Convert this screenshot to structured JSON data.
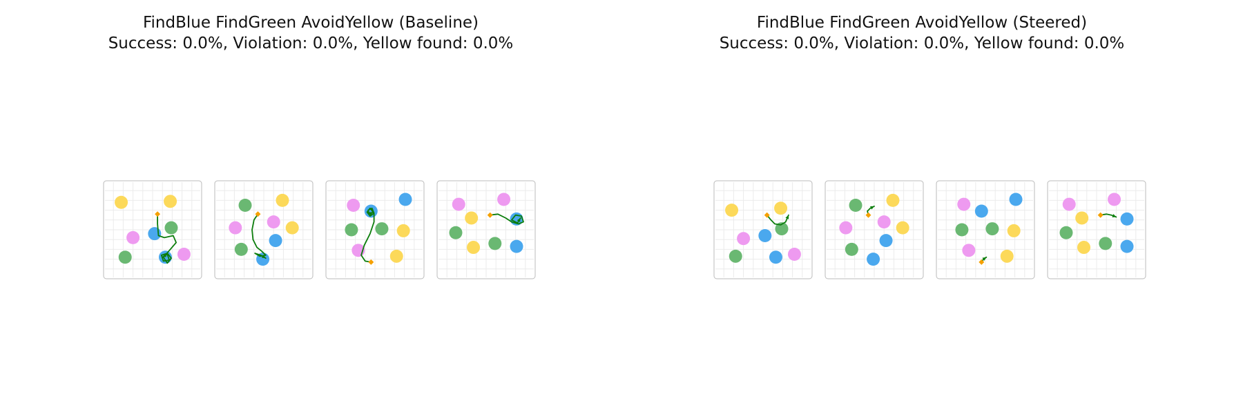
{
  "colors": {
    "blue": "#4aa8ee",
    "green": "#6ab872",
    "yellow": "#fcd95a",
    "pink": "#ee9af0",
    "path": "#0b7d0b",
    "start": "#f5a000",
    "frame": "#bbbbbb",
    "grid": "#ebebeb"
  },
  "panels": [
    {
      "title": "FindBlue FindGreen AvoidYellow (Baseline)",
      "subtitle": "Success: 0.0%, Violation: 0.0%, Yellow found: 0.0%"
    },
    {
      "title": "FindBlue FindGreen AvoidYellow (Steered)",
      "subtitle": "Success: 0.0%, Violation: 0.0%, Yellow found: 0.0%"
    }
  ],
  "chart_data": [
    {
      "type": "scatter",
      "title": "FindBlue FindGreen AvoidYellow (Baseline)",
      "subtitle": "Success: 0.0%, Violation: 0.0%, Yellow found: 0.0%",
      "grid": true,
      "episodes": [
        {
          "balls": [
            {
              "color": "yellow",
              "x": 1.8,
              "y": 7.8
            },
            {
              "color": "yellow",
              "x": 6.8,
              "y": 7.9
            },
            {
              "color": "green",
              "x": 6.9,
              "y": 5.2
            },
            {
              "color": "blue",
              "x": 5.2,
              "y": 4.6
            },
            {
              "color": "pink",
              "x": 3.0,
              "y": 4.2
            },
            {
              "color": "green",
              "x": 2.2,
              "y": 2.2
            },
            {
              "color": "blue",
              "x": 6.3,
              "y": 2.2
            },
            {
              "color": "pink",
              "x": 8.2,
              "y": 2.5
            }
          ],
          "start": {
            "x": 5.5,
            "y": 6.6
          },
          "path": [
            [
              5.5,
              6.6
            ],
            [
              5.5,
              5.6
            ],
            [
              5.6,
              4.4
            ],
            [
              6.2,
              4.2
            ],
            [
              7.1,
              4.4
            ],
            [
              7.4,
              3.7
            ],
            [
              6.8,
              3.0
            ],
            [
              6.1,
              2.2
            ],
            [
              6.5,
              1.6
            ],
            [
              6.9,
              2.1
            ],
            [
              6.5,
              2.6
            ],
            [
              5.9,
              2.4
            ],
            [
              6.1,
              1.8
            ],
            [
              6.7,
              1.9
            ],
            [
              6.5,
              2.5
            ],
            [
              6.0,
              2.2
            ]
          ]
        },
        {
          "balls": [
            {
              "color": "green",
              "x": 3.1,
              "y": 7.5
            },
            {
              "color": "yellow",
              "x": 6.9,
              "y": 8.0
            },
            {
              "color": "pink",
              "x": 6.0,
              "y": 5.8
            },
            {
              "color": "yellow",
              "x": 7.9,
              "y": 5.2
            },
            {
              "color": "pink",
              "x": 2.1,
              "y": 5.2
            },
            {
              "color": "blue",
              "x": 6.2,
              "y": 3.9
            },
            {
              "color": "green",
              "x": 2.7,
              "y": 3.0
            },
            {
              "color": "blue",
              "x": 4.9,
              "y": 2.0
            }
          ],
          "start": {
            "x": 4.4,
            "y": 6.6
          },
          "path": [
            [
              4.4,
              6.6
            ],
            [
              4.0,
              6.0
            ],
            [
              3.8,
              5.0
            ],
            [
              3.9,
              4.0
            ],
            [
              4.3,
              3.2
            ],
            [
              4.8,
              2.8
            ],
            [
              5.2,
              2.4
            ],
            [
              4.6,
              2.3
            ],
            [
              4.1,
              2.6
            ],
            [
              4.7,
              2.4
            ],
            [
              5.2,
              2.1
            ]
          ]
        },
        {
          "balls": [
            {
              "color": "pink",
              "x": 2.8,
              "y": 7.5
            },
            {
              "color": "blue",
              "x": 8.1,
              "y": 8.1
            },
            {
              "color": "blue",
              "x": 4.6,
              "y": 6.9
            },
            {
              "color": "green",
              "x": 2.6,
              "y": 5.0
            },
            {
              "color": "green",
              "x": 5.7,
              "y": 5.1
            },
            {
              "color": "yellow",
              "x": 7.9,
              "y": 4.9
            },
            {
              "color": "pink",
              "x": 3.3,
              "y": 2.9
            },
            {
              "color": "yellow",
              "x": 7.2,
              "y": 2.3
            }
          ],
          "start": {
            "x": 4.6,
            "y": 1.7
          },
          "path": [
            [
              4.6,
              1.7
            ],
            [
              4.0,
              1.8
            ],
            [
              3.6,
              2.4
            ],
            [
              3.9,
              3.4
            ],
            [
              4.5,
              4.6
            ],
            [
              4.9,
              5.8
            ],
            [
              4.9,
              6.7
            ],
            [
              4.5,
              7.2
            ],
            [
              4.2,
              6.8
            ],
            [
              4.5,
              6.4
            ],
            [
              4.9,
              6.7
            ],
            [
              4.7,
              7.2
            ],
            [
              4.3,
              7.0
            ],
            [
              4.4,
              6.6
            ],
            [
              4.8,
              6.8
            ]
          ]
        },
        {
          "balls": [
            {
              "color": "pink",
              "x": 2.2,
              "y": 7.6
            },
            {
              "color": "pink",
              "x": 6.8,
              "y": 8.1
            },
            {
              "color": "yellow",
              "x": 3.5,
              "y": 6.2
            },
            {
              "color": "blue",
              "x": 8.1,
              "y": 6.1
            },
            {
              "color": "green",
              "x": 1.9,
              "y": 4.7
            },
            {
              "color": "green",
              "x": 5.9,
              "y": 3.6
            },
            {
              "color": "yellow",
              "x": 3.7,
              "y": 3.2
            },
            {
              "color": "blue",
              "x": 8.1,
              "y": 3.3
            }
          ],
          "start": {
            "x": 5.4,
            "y": 6.5
          },
          "path": [
            [
              5.4,
              6.5
            ],
            [
              6.2,
              6.6
            ],
            [
              7.0,
              6.2
            ],
            [
              7.6,
              5.8
            ],
            [
              8.3,
              5.6
            ],
            [
              8.8,
              5.8
            ],
            [
              8.6,
              6.4
            ],
            [
              8.0,
              6.5
            ],
            [
              7.6,
              6.0
            ],
            [
              8.2,
              5.7
            ],
            [
              8.5,
              6.2
            ]
          ]
        }
      ]
    },
    {
      "type": "scatter",
      "title": "FindBlue FindGreen AvoidYellow (Steered)",
      "subtitle": "Success: 0.0%, Violation: 0.0%, Yellow found: 0.0%",
      "grid": true,
      "episodes": [
        {
          "balls": [
            {
              "color": "yellow",
              "x": 1.8,
              "y": 7.0
            },
            {
              "color": "yellow",
              "x": 6.8,
              "y": 7.2
            },
            {
              "color": "green",
              "x": 6.9,
              "y": 5.1
            },
            {
              "color": "blue",
              "x": 5.2,
              "y": 4.4
            },
            {
              "color": "pink",
              "x": 3.0,
              "y": 4.1
            },
            {
              "color": "green",
              "x": 2.2,
              "y": 2.3
            },
            {
              "color": "blue",
              "x": 6.3,
              "y": 2.2
            },
            {
              "color": "pink",
              "x": 8.2,
              "y": 2.5
            }
          ],
          "start": {
            "x": 5.4,
            "y": 6.5
          },
          "path": [
            [
              5.4,
              6.5
            ],
            [
              5.8,
              6.0
            ],
            [
              6.2,
              5.6
            ],
            [
              6.8,
              5.5
            ],
            [
              7.3,
              5.8
            ],
            [
              7.6,
              6.5
            ]
          ]
        },
        {
          "balls": [
            {
              "color": "green",
              "x": 3.1,
              "y": 7.5
            },
            {
              "color": "yellow",
              "x": 6.9,
              "y": 8.0
            },
            {
              "color": "pink",
              "x": 6.0,
              "y": 5.8
            },
            {
              "color": "yellow",
              "x": 7.9,
              "y": 5.2
            },
            {
              "color": "pink",
              "x": 2.1,
              "y": 5.2
            },
            {
              "color": "blue",
              "x": 6.2,
              "y": 3.9
            },
            {
              "color": "green",
              "x": 2.7,
              "y": 3.0
            },
            {
              "color": "blue",
              "x": 4.9,
              "y": 2.0
            }
          ],
          "start": {
            "x": 4.4,
            "y": 6.5
          },
          "path": [
            [
              4.4,
              6.5
            ],
            [
              4.3,
              6.9
            ],
            [
              4.6,
              7.2
            ],
            [
              5.0,
              7.4
            ]
          ]
        },
        {
          "balls": [
            {
              "color": "pink",
              "x": 2.8,
              "y": 7.6
            },
            {
              "color": "blue",
              "x": 8.1,
              "y": 8.1
            },
            {
              "color": "blue",
              "x": 4.6,
              "y": 6.9
            },
            {
              "color": "green",
              "x": 2.6,
              "y": 5.0
            },
            {
              "color": "green",
              "x": 5.7,
              "y": 5.1
            },
            {
              "color": "yellow",
              "x": 7.9,
              "y": 4.9
            },
            {
              "color": "pink",
              "x": 3.3,
              "y": 2.9
            },
            {
              "color": "yellow",
              "x": 7.2,
              "y": 2.3
            }
          ],
          "start": {
            "x": 4.6,
            "y": 1.7
          },
          "path": [
            [
              4.6,
              1.7
            ],
            [
              4.8,
              2.0
            ],
            [
              5.1,
              2.2
            ]
          ]
        },
        {
          "balls": [
            {
              "color": "pink",
              "x": 2.2,
              "y": 7.6
            },
            {
              "color": "pink",
              "x": 6.8,
              "y": 8.1
            },
            {
              "color": "yellow",
              "x": 3.5,
              "y": 6.2
            },
            {
              "color": "blue",
              "x": 8.1,
              "y": 6.1
            },
            {
              "color": "green",
              "x": 1.9,
              "y": 4.7
            },
            {
              "color": "green",
              "x": 5.9,
              "y": 3.6
            },
            {
              "color": "yellow",
              "x": 3.7,
              "y": 3.2
            },
            {
              "color": "blue",
              "x": 8.1,
              "y": 3.3
            }
          ],
          "start": {
            "x": 5.4,
            "y": 6.5
          },
          "path": [
            [
              5.4,
              6.5
            ],
            [
              6.0,
              6.6
            ],
            [
              6.5,
              6.5
            ],
            [
              7.0,
              6.3
            ]
          ]
        }
      ]
    }
  ]
}
